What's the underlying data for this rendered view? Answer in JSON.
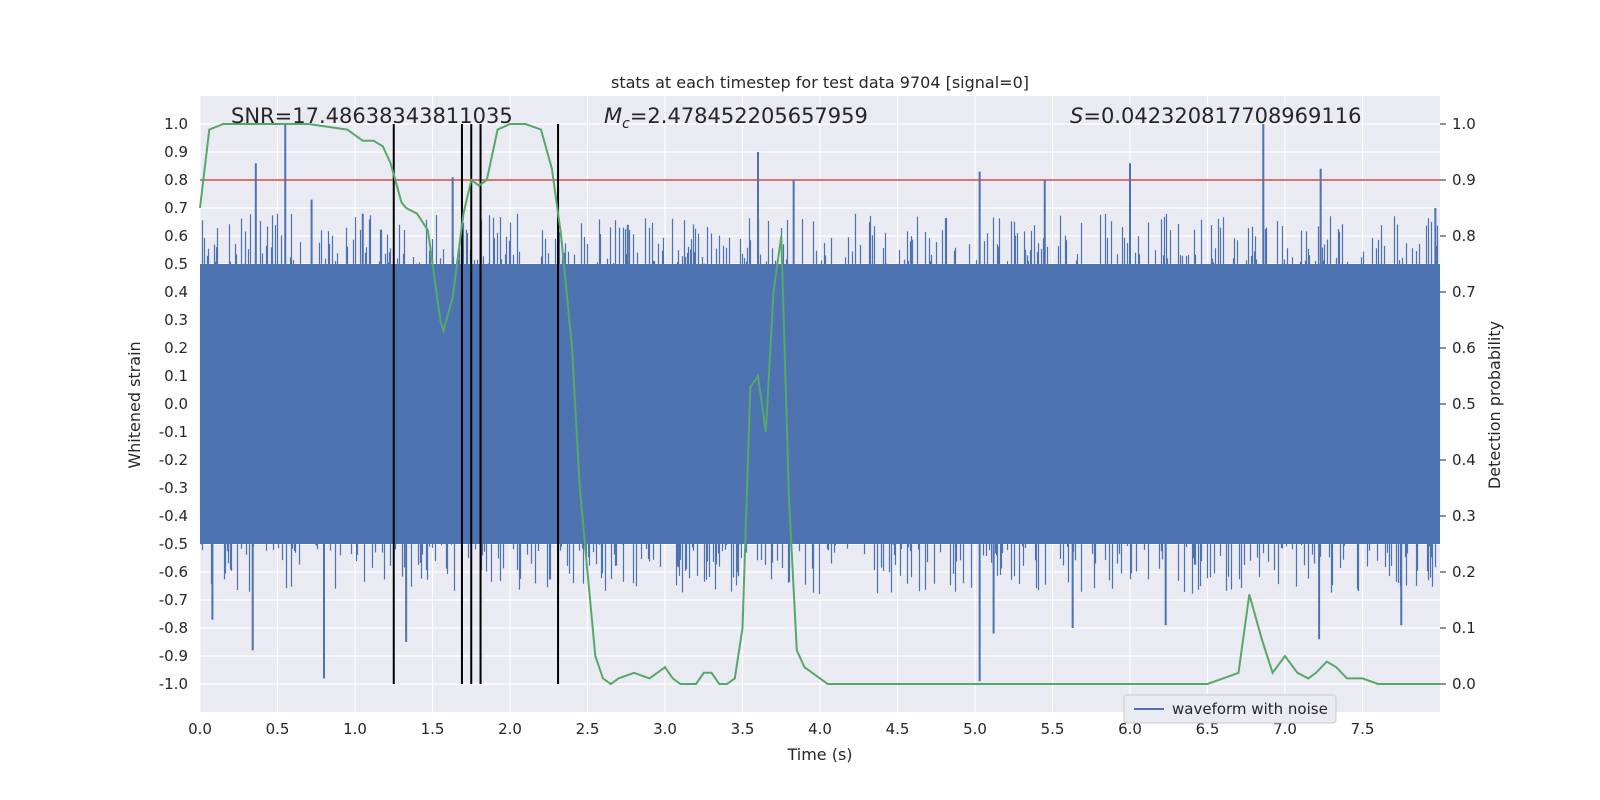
{
  "chart_data": {
    "type": "line",
    "title": "stats at each timestep for test data 9704 [signal=0]",
    "xlabel": "Time (s)",
    "ylabel": "Whitened strain",
    "y2label": "Detection probability",
    "xlim": [
      0.0,
      8.0
    ],
    "ylim": [
      -1.1,
      1.1
    ],
    "y2lim": [
      -0.05,
      1.05
    ],
    "grid": true,
    "xticks": [
      "0.0",
      "0.5",
      "1.0",
      "1.5",
      "2.0",
      "2.5",
      "3.0",
      "3.5",
      "4.0",
      "4.5",
      "5.0",
      "5.5",
      "6.0",
      "6.5",
      "7.0",
      "7.5"
    ],
    "yticks": [
      "1.0",
      "0.9",
      "0.8",
      "0.7",
      "0.6",
      "0.5",
      "0.4",
      "0.3",
      "0.2",
      "0.1",
      "0.0",
      "-0.1",
      "-0.2",
      "-0.3",
      "-0.4",
      "-0.5",
      "-0.6",
      "-0.7",
      "-0.8",
      "-0.9",
      "-1.0"
    ],
    "y2ticks": [
      "1.0",
      "0.9",
      "0.8",
      "0.7",
      "0.6",
      "0.5",
      "0.4",
      "0.3",
      "0.2",
      "0.1",
      "0.0"
    ],
    "annotations": {
      "snr": "SNR=17.48638343811035",
      "mc_symbol": "M",
      "mc_sub": "c",
      "mc_value": "=2.478452205657959",
      "s_symbol": "S",
      "s_value": "=0.042320817708969116"
    },
    "legend": {
      "label": "waveform with noise",
      "location": "lower-right"
    },
    "threshold": {
      "y2": 0.9,
      "color": "#c44e52"
    },
    "event_lines_x": [
      1.25,
      1.69,
      1.75,
      1.81,
      2.31
    ],
    "event_lines_y2": [
      0.0,
      1.0
    ],
    "series": [
      {
        "name": "waveform with noise",
        "color": "#4c72b0",
        "band_min": -0.5,
        "band_max": 0.5,
        "spikes_up": [
          {
            "x": 0.36,
            "y": 0.86
          },
          {
            "x": 0.55,
            "y": 1.0
          },
          {
            "x": 0.72,
            "y": 0.73
          },
          {
            "x": 1.05,
            "y": 0.68
          },
          {
            "x": 1.63,
            "y": 0.81
          },
          {
            "x": 2.76,
            "y": 0.64
          },
          {
            "x": 3.6,
            "y": 0.9
          },
          {
            "x": 3.83,
            "y": 0.8
          },
          {
            "x": 5.03,
            "y": 0.83
          },
          {
            "x": 5.45,
            "y": 0.8
          },
          {
            "x": 6.0,
            "y": 0.86
          },
          {
            "x": 6.86,
            "y": 1.0
          },
          {
            "x": 7.23,
            "y": 0.84
          },
          {
            "x": 7.97,
            "y": 0.7
          }
        ],
        "spikes_down": [
          {
            "x": 0.08,
            "y": -0.77
          },
          {
            "x": 0.34,
            "y": -0.88
          },
          {
            "x": 0.8,
            "y": -0.98
          },
          {
            "x": 1.33,
            "y": -0.85
          },
          {
            "x": 5.03,
            "y": -0.99
          },
          {
            "x": 5.12,
            "y": -0.82
          },
          {
            "x": 5.63,
            "y": -0.8
          },
          {
            "x": 6.23,
            "y": -0.79
          },
          {
            "x": 7.22,
            "y": -0.84
          },
          {
            "x": 7.75,
            "y": -0.79
          }
        ]
      },
      {
        "name": "detection probability",
        "color": "#55a868",
        "axis": "y2",
        "x": [
          0.0,
          0.06,
          0.15,
          0.4,
          0.7,
          0.95,
          1.05,
          1.12,
          1.18,
          1.23,
          1.3,
          1.33,
          1.4,
          1.47,
          1.55,
          1.57,
          1.63,
          1.7,
          1.75,
          1.8,
          1.85,
          1.92,
          2.0,
          2.1,
          2.2,
          2.27,
          2.33,
          2.4,
          2.45,
          2.5,
          2.55,
          2.6,
          2.65,
          2.7,
          2.8,
          2.9,
          2.95,
          3.0,
          3.05,
          3.1,
          3.2,
          3.25,
          3.3,
          3.35,
          3.4,
          3.45,
          3.5,
          3.55,
          3.6,
          3.65,
          3.7,
          3.75,
          3.8,
          3.85,
          3.9,
          3.95,
          4.0,
          4.05,
          4.1,
          4.15,
          4.3,
          4.5,
          4.7,
          4.9,
          5.1,
          5.3,
          5.5,
          5.7,
          5.9,
          6.1,
          6.3,
          6.5,
          6.6,
          6.7,
          6.77,
          6.85,
          6.92,
          7.0,
          7.08,
          7.15,
          7.2,
          7.27,
          7.33,
          7.4,
          7.5,
          7.6,
          7.8,
          8.0
        ],
        "y": [
          0.85,
          0.99,
          1.0,
          1.0,
          1.0,
          0.99,
          0.97,
          0.97,
          0.96,
          0.93,
          0.86,
          0.85,
          0.84,
          0.81,
          0.65,
          0.63,
          0.69,
          0.84,
          0.9,
          0.89,
          0.9,
          0.99,
          1.0,
          1.0,
          0.99,
          0.92,
          0.8,
          0.6,
          0.35,
          0.2,
          0.05,
          0.01,
          0.0,
          0.01,
          0.02,
          0.01,
          0.02,
          0.03,
          0.01,
          0.0,
          0.0,
          0.02,
          0.02,
          0.0,
          0.0,
          0.01,
          0.1,
          0.53,
          0.55,
          0.45,
          0.7,
          0.8,
          0.33,
          0.06,
          0.03,
          0.02,
          0.01,
          0.0,
          0.0,
          0.0,
          0.0,
          0.0,
          0.0,
          0.0,
          0.0,
          0.0,
          0.0,
          0.0,
          0.0,
          0.0,
          0.0,
          0.0,
          0.01,
          0.02,
          0.16,
          0.08,
          0.02,
          0.05,
          0.02,
          0.01,
          0.02,
          0.04,
          0.03,
          0.01,
          0.01,
          0.0,
          0.0,
          0.0
        ]
      }
    ]
  }
}
